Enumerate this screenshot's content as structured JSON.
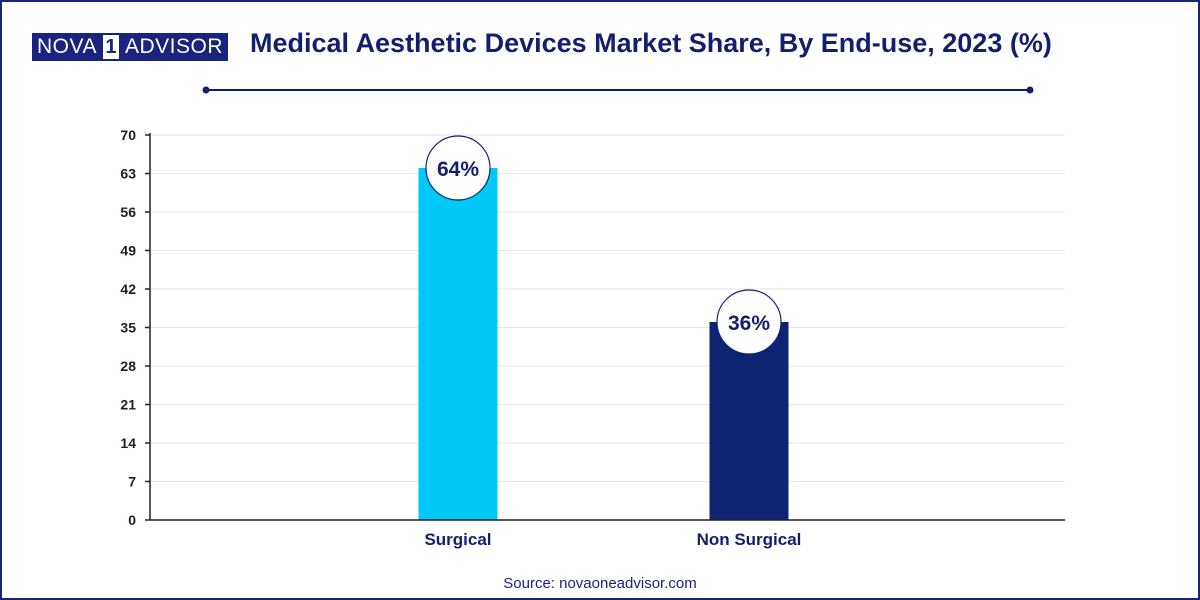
{
  "brand": {
    "nova": "NOVA",
    "one": "1",
    "advisor": "ADVISOR"
  },
  "title": "Medical Aesthetic Devices Market Share, By End-use, 2023 (%)",
  "source": "Source: novaoneadvisor.com",
  "colors": {
    "navy": "#0d2472",
    "cyan": "#00c8f8",
    "grid": "#e6e6e6"
  },
  "chart_data": {
    "type": "bar",
    "title": "Medical Aesthetic Devices Market Share, By End-use, 2023 (%)",
    "categories": [
      "Surgical",
      "Non Surgical"
    ],
    "values": [
      64,
      36
    ],
    "data_labels": [
      "64%",
      "36%"
    ],
    "bar_colors": [
      "#00c8f8",
      "#0d2472"
    ],
    "yticks": [
      0,
      7,
      14,
      21,
      28,
      35,
      42,
      49,
      56,
      63,
      70
    ],
    "ylim": [
      0,
      70
    ],
    "xlabel": "",
    "ylabel": "",
    "grid": true,
    "legend": "none"
  }
}
